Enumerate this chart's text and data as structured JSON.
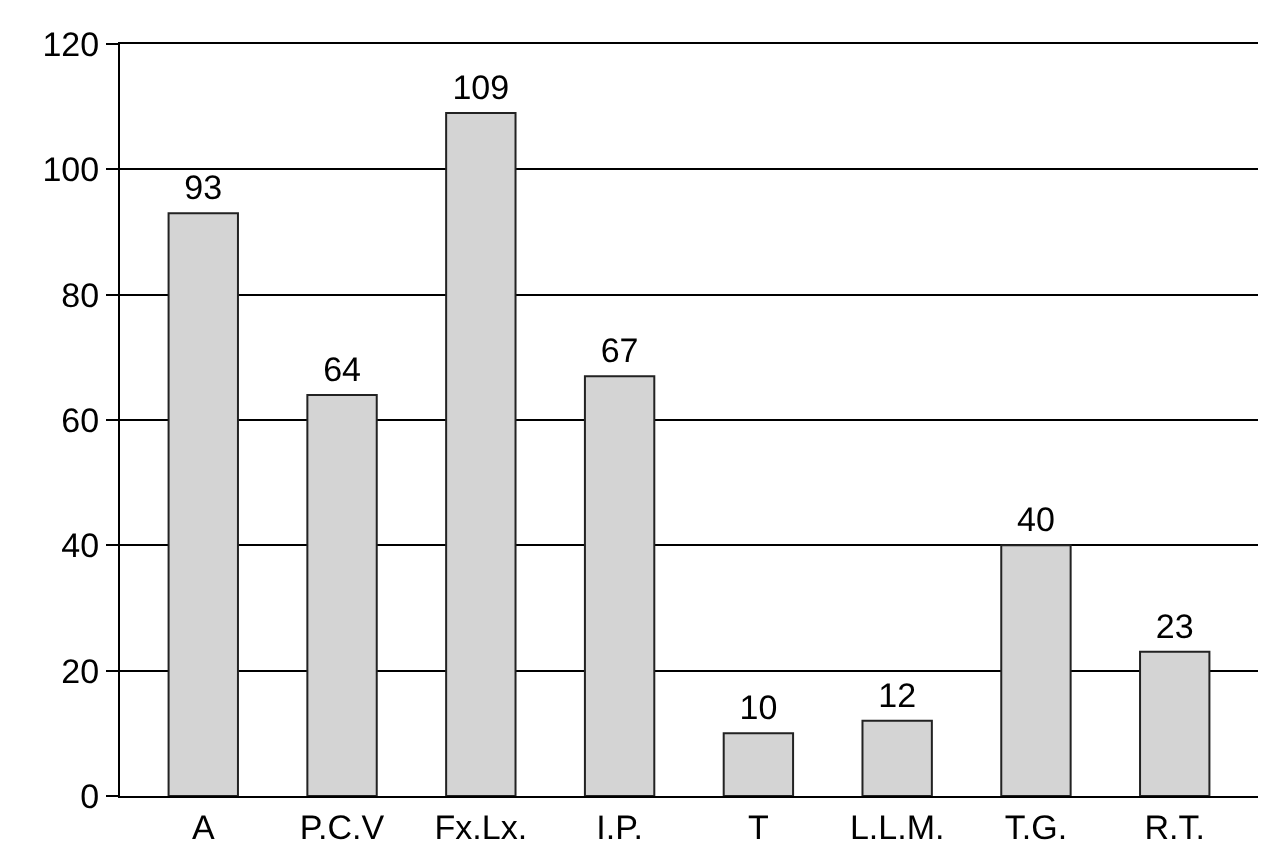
{
  "chart_data": {
    "type": "bar",
    "categories": [
      "A",
      "P.C.V",
      "Fx.Lx.",
      "I.P.",
      "T",
      "L.L.M.",
      "T.G.",
      "R.T."
    ],
    "values": [
      93,
      64,
      109,
      67,
      10,
      12,
      40,
      23
    ],
    "color": "#d4d4d4",
    "ylim": [
      0,
      120
    ],
    "yticks": [
      0,
      20,
      40,
      60,
      80,
      100,
      120
    ],
    "grid": "y",
    "data_labels": true
  }
}
